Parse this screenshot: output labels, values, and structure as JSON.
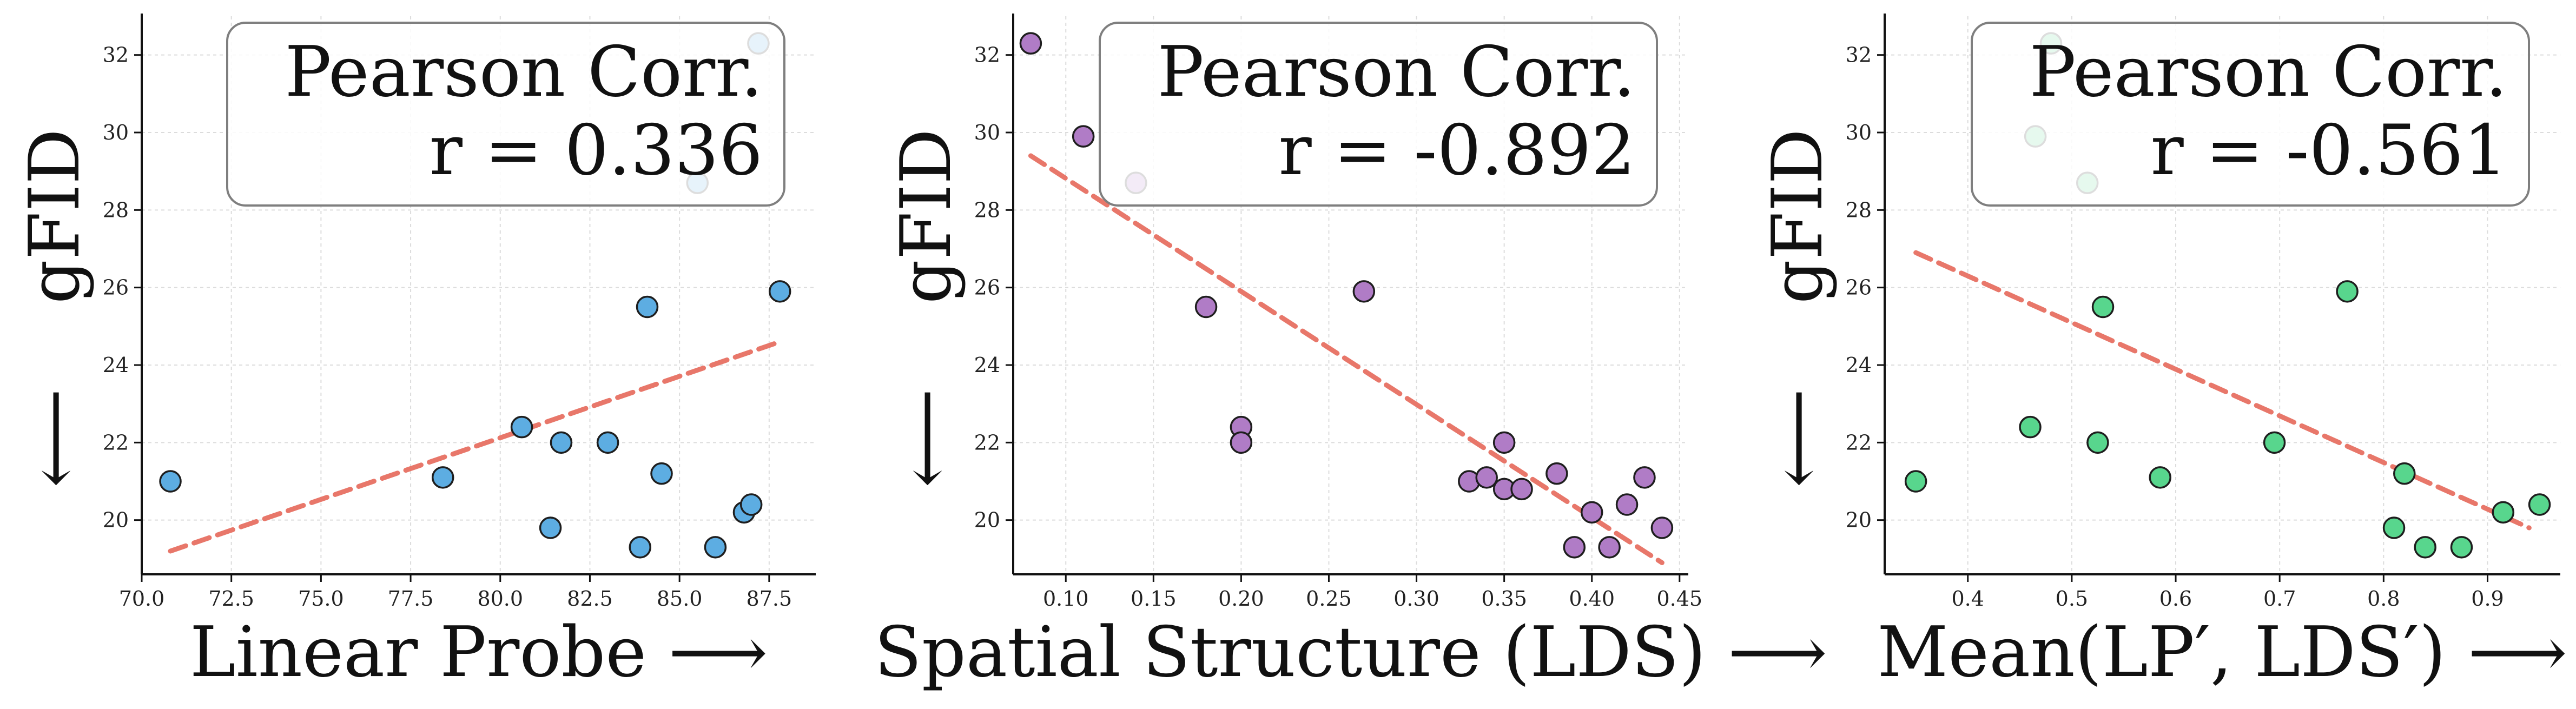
{
  "chart_data": [
    {
      "type": "scatter",
      "xlabel": "Linear Probe ⟶",
      "ylabel": "gFID",
      "ylabel_arrow": "⟵",
      "xlim": [
        70.0,
        88.8
      ],
      "ylim": [
        18.6,
        33.0
      ],
      "xticks": [
        "70.0",
        "72.5",
        "75.0",
        "77.5",
        "80.0",
        "82.5",
        "85.0",
        "87.5"
      ],
      "xtick_values": [
        70.0,
        72.5,
        75.0,
        77.5,
        80.0,
        82.5,
        85.0,
        87.5
      ],
      "yticks": [
        "20",
        "22",
        "24",
        "26",
        "28",
        "30",
        "32"
      ],
      "ytick_values": [
        20,
        22,
        24,
        26,
        28,
        30,
        32
      ],
      "corr_label": "Pearson Corr.",
      "corr_value": "r = 0.336",
      "color": "#5DADE2",
      "trend_color": "#E8776A",
      "trend": [
        [
          70.8,
          19.2
        ],
        [
          87.8,
          24.6
        ]
      ],
      "points": [
        [
          70.8,
          21.0
        ],
        [
          78.4,
          21.1
        ],
        [
          80.6,
          22.4
        ],
        [
          81.4,
          19.8
        ],
        [
          81.7,
          22.0
        ],
        [
          83.0,
          22.0
        ],
        [
          83.9,
          19.3
        ],
        [
          84.1,
          25.5
        ],
        [
          84.5,
          21.2
        ],
        [
          85.5,
          28.7
        ],
        [
          86.0,
          19.3
        ],
        [
          86.8,
          20.2
        ],
        [
          87.0,
          20.4
        ],
        [
          87.2,
          32.3
        ],
        [
          87.8,
          25.9
        ]
      ]
    },
    {
      "type": "scatter",
      "xlabel": "Spatial Structure (LDS) ⟶",
      "ylabel": "gFID",
      "ylabel_arrow": "⟵",
      "xlim": [
        0.07,
        0.455
      ],
      "ylim": [
        18.6,
        33.0
      ],
      "xticks": [
        "0.10",
        "0.15",
        "0.20",
        "0.25",
        "0.30",
        "0.35",
        "0.40",
        "0.45"
      ],
      "xtick_values": [
        0.1,
        0.15,
        0.2,
        0.25,
        0.3,
        0.35,
        0.4,
        0.45
      ],
      "yticks": [
        "20",
        "22",
        "24",
        "26",
        "28",
        "30",
        "32"
      ],
      "ytick_values": [
        20,
        22,
        24,
        26,
        28,
        30,
        32
      ],
      "corr_label": "Pearson Corr.",
      "corr_value": "r = -0.892",
      "color": "#B07CC6",
      "trend_color": "#E8776A",
      "trend": [
        [
          0.08,
          29.4
        ],
        [
          0.44,
          18.9
        ]
      ],
      "points": [
        [
          0.08,
          32.3
        ],
        [
          0.11,
          29.9
        ],
        [
          0.14,
          28.7
        ],
        [
          0.18,
          25.5
        ],
        [
          0.2,
          22.4
        ],
        [
          0.2,
          22.0
        ],
        [
          0.27,
          25.9
        ],
        [
          0.33,
          21.0
        ],
        [
          0.34,
          21.1
        ],
        [
          0.35,
          22.0
        ],
        [
          0.35,
          20.8
        ],
        [
          0.36,
          20.8
        ],
        [
          0.38,
          21.2
        ],
        [
          0.39,
          19.3
        ],
        [
          0.4,
          20.2
        ],
        [
          0.41,
          19.3
        ],
        [
          0.42,
          20.4
        ],
        [
          0.43,
          21.1
        ],
        [
          0.44,
          19.8
        ]
      ]
    },
    {
      "type": "scatter",
      "xlabel": "Mean(LP′, LDS′) ⟶",
      "ylabel": "gFID",
      "ylabel_arrow": "⟵",
      "xlim": [
        0.32,
        0.97
      ],
      "ylim": [
        18.6,
        33.0
      ],
      "xticks": [
        "0.4",
        "0.5",
        "0.6",
        "0.7",
        "0.8",
        "0.9"
      ],
      "xtick_values": [
        0.4,
        0.5,
        0.6,
        0.7,
        0.8,
        0.9
      ],
      "yticks": [
        "20",
        "22",
        "24",
        "26",
        "28",
        "30",
        "32"
      ],
      "ytick_values": [
        20,
        22,
        24,
        26,
        28,
        30,
        32
      ],
      "corr_label": "Pearson Corr.",
      "corr_value": "r = -0.561",
      "color": "#58D68D",
      "trend_color": "#E8776A",
      "trend": [
        [
          0.35,
          26.9
        ],
        [
          0.94,
          19.8
        ]
      ],
      "points": [
        [
          0.35,
          21.0
        ],
        [
          0.46,
          22.4
        ],
        [
          0.465,
          29.9
        ],
        [
          0.48,
          32.3
        ],
        [
          0.515,
          28.7
        ],
        [
          0.525,
          22.0
        ],
        [
          0.53,
          25.5
        ],
        [
          0.585,
          21.1
        ],
        [
          0.695,
          22.0
        ],
        [
          0.765,
          25.9
        ],
        [
          0.81,
          19.8
        ],
        [
          0.82,
          21.2
        ],
        [
          0.84,
          19.3
        ],
        [
          0.875,
          19.3
        ],
        [
          0.915,
          20.2
        ],
        [
          0.95,
          20.4
        ]
      ]
    }
  ]
}
